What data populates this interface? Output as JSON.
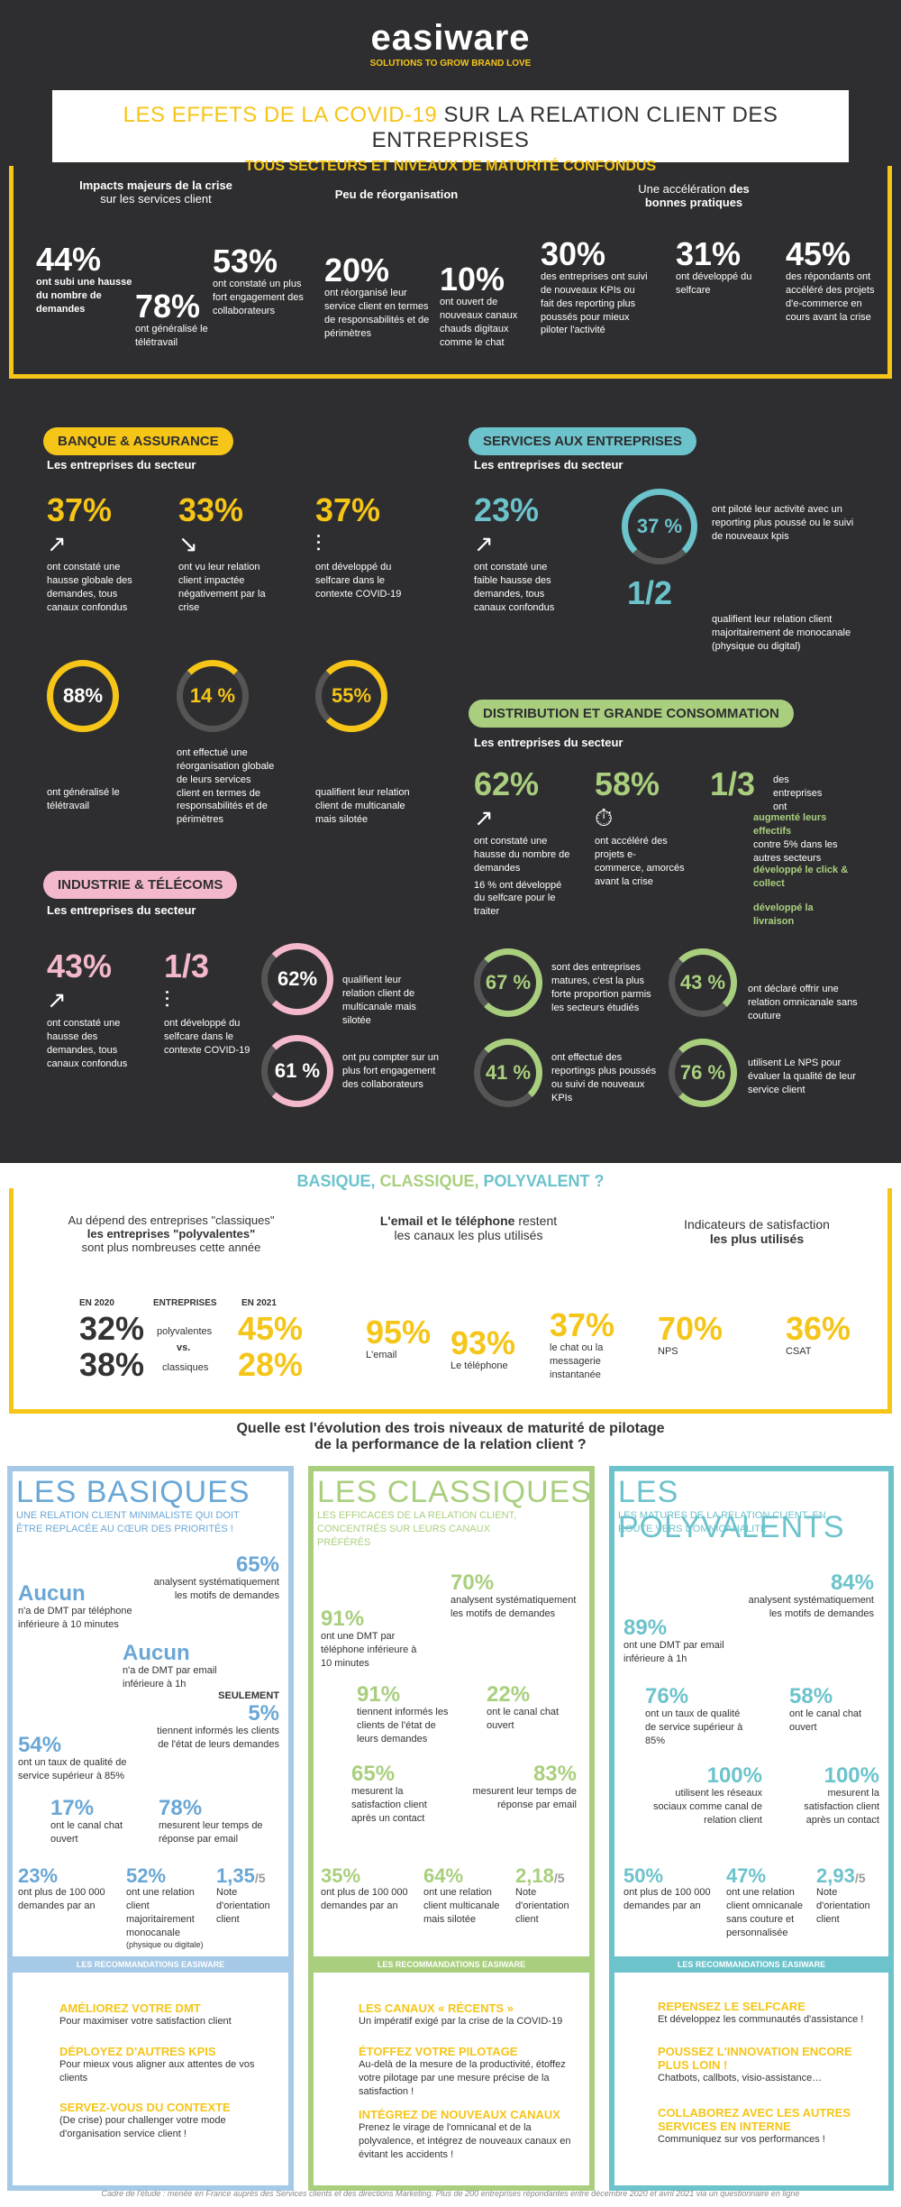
{
  "header": {
    "brand": "easiware",
    "tagline": "SOLUTIONS TO GROW BRAND LOVE",
    "title_a": "LES EFFETS DE LA COVID-19",
    "title_b": " SUR LA RELATION CLIENT DES ENTREPRISES",
    "subtitle": "TOUS SECTEURS ET NIVEAUX DE MATURITÉ CONFONDUS"
  },
  "overview": {
    "h1": "Impacts majeurs de la crise",
    "h1b": "sur les services client",
    "h2": "Peu de réorganisation",
    "h3a": "Une accélération ",
    "h3b": "des",
    "h3c": "bonnes pratiques",
    "s1": "44%",
    "s1t": "ont subi une hausse du nombre de demandes",
    "s2": "78%",
    "s2t": "ont généralisé le télétravail",
    "s3": "53%",
    "s3t": "ont constaté un plus fort engagement des collaborateurs",
    "s4": "20%",
    "s4t": "ont réorganisé leur service client en termes de responsabilités et de périmètres",
    "s5": "10%",
    "s5t": "ont ouvert de nouveaux canaux chauds digitaux comme le chat",
    "s6": "30%",
    "s6t": "des entreprises ont suivi de nouveaux KPIs ou fait des reporting plus poussés pour mieux piloter l'activité",
    "s7": "31%",
    "s7t": "ont développé du selfcare",
    "s8": "45%",
    "s8t": "des répondants ont accéléré des projets d'e-commerce en cours avant la crise"
  },
  "banque": {
    "pill": "BANQUE & ASSURANCE",
    "sub": "Les entreprises du secteur",
    "a": "37%",
    "at": "ont constaté une hausse globale des demandes, tous canaux confondus",
    "b": "33%",
    "bt": "ont vu leur relation client impactée négativement par la crise",
    "c": "37%",
    "ct": "ont développé du selfcare dans le contexte COVID-19",
    "d": "88%",
    "dt": "ont généralisé le télétravail",
    "e": "14 %",
    "et": "ont effectué une réorganisation globale de leurs services client en termes de responsabilités et de périmètres",
    "f": "55%",
    "ft": "qualifient leur relation client de multicanale mais silotée"
  },
  "services": {
    "pill": "SERVICES AUX ENTREPRISES",
    "sub": "Les entreprises du secteur",
    "a": "23%",
    "at": "ont constaté une faible hausse des demandes, tous canaux confondus",
    "b": "37 %",
    "bt": "ont piloté leur activité avec un reporting plus poussé ou le suivi de nouveaux kpis",
    "c": "1/2",
    "ct": "qualifient leur relation client majoritairement de monocanale (physique ou digital)"
  },
  "industrie": {
    "pill": "INDUSTRIE & TÉLÉCOMS",
    "sub": "Les entreprises du secteur",
    "a": "43%",
    "at": "ont constaté une hausse des demandes, tous canaux confondus",
    "b": "1/3",
    "bt": "ont développé du selfcare dans le contexte COVID-19",
    "c": "62%",
    "ct": "qualifient leur relation client de multicanale mais silotée",
    "d": "61 %",
    "dt": "ont pu compter sur un plus fort engagement des collaborateurs"
  },
  "distribution": {
    "pill": "DISTRIBUTION ET GRANDE CONSOMMATION",
    "sub": "Les entreprises du secteur",
    "a": "62%",
    "at": "ont constaté une hausse du nombre de demandes",
    "at2": "16 % ont développé du selfcare pour le traiter",
    "b": "58%",
    "bt": "ont accéléré des projets e-commerce, amorcés avant la crise",
    "c": "1/3",
    "ct": "des entreprises ont",
    "c1": "augmenté leurs effectifs",
    "c1t": "contre 5% dans les autres secteurs",
    "c2": "développé le click & collect",
    "c3": "développé la livraison",
    "d": "67 %",
    "dt": "sont des entreprises matures, c'est la plus forte proportion parmis les secteurs étudiés",
    "e": "43 %",
    "et": "ont déclaré offrir une relation omnicanale sans couture",
    "f": "41 %",
    "ft": "ont effectué des reportings plus poussés ou suivi de nouveaux KPIs",
    "g": "76 %",
    "gt": "utilisent Le NPS pour évaluer la qualité de leur service client"
  },
  "basique": {
    "t1": "BASIQUE, ",
    "t2": "CLASSIQUE, ",
    "t3": "POLYVALENT ?",
    "c1a": "Au dépend des entreprises \"classiques\"",
    "c1b": "les entreprises \"polyvalentes\"",
    "c1c": "sont plus nombreuses cette année",
    "en2020": "EN 2020",
    "entreprises": "ENTREPRISES",
    "en2021": "EN 2021",
    "v1": "32%",
    "l1": "polyvalentes",
    "v2": "45%",
    "vs": "vs.",
    "v3": "38%",
    "l2": "classiques",
    "v4": "28%",
    "c2a": "L'email et le téléphone",
    "c2b": " restent",
    "c2c": "les canaux les plus utilisés",
    "e1": "95%",
    "e1t": "L'email",
    "e2": "93%",
    "e2t": "Le téléphone",
    "e3": "37%",
    "e3t": "le chat ou la messagerie instantanée",
    "c3a": "Indicateurs de satisfaction",
    "c3b": "les plus utilisés",
    "n1": "70%",
    "n1t": "NPS",
    "n2": "36%",
    "n2t": "CSAT",
    "q1": "Quelle est l'évolution des trois niveaux de maturité de pilotage",
    "q2": "de la performance de la relation client ?"
  },
  "col_basiques": {
    "title": "LES BASIQUES",
    "sub": "UNE RELATION CLIENT MINIMALISTE QUI DOIT ÊTRE REPLACÉE AU CŒUR DES PRIORITÉS !",
    "a": "65%",
    "at": "analysent systématiquement les motifs de demandes",
    "b": "Aucun",
    "bt": "n'a de DMT par téléphone inférieure à 10 minutes",
    "c": "Aucun",
    "ct": "n'a de DMT par email inférieure à 1h",
    "d0": "SEULEMENT",
    "d": "5%",
    "dt": "tiennent informés les clients de l'état de leurs demandes",
    "e": "54%",
    "et": "ont un taux de qualité de service supérieur à 85%",
    "f": "17%",
    "ft": "ont le canal chat ouvert",
    "g": "78%",
    "gt": "mesurent leur temps de réponse par email",
    "h": "23%",
    "ht": "ont plus de 100 000 demandes par an",
    "i": "52%",
    "it": "ont une relation client majoritairement monocanale",
    "it2": "(physique ou digitale)",
    "j": "1,35",
    "jd": "/5",
    "jt": "Note d'orientation client"
  },
  "col_classiques": {
    "title": "LES CLASSIQUES",
    "sub": "LES EFFICACES DE LA RELATION CLIENT, CONCENTRÉS SUR LEURS CANAUX PRÉFÉRÉS",
    "a": "70%",
    "at": "analysent systématiquement les motifs de demandes",
    "b": "91%",
    "bt": "ont une DMT par téléphone inférieure à 10 minutes",
    "c": "91%",
    "ct": "tiennent informés les clients de l'état de leurs demandes",
    "d": "22%",
    "dt": "ont le canal chat ouvert",
    "e": "65%",
    "et": "mesurent la satisfaction client après un contact",
    "f": "83%",
    "ft": "mesurent leur temps de réponse par email",
    "h": "35%",
    "ht": "ont plus de 100 000 demandes par an",
    "i": "64%",
    "it": "ont une relation client multicanale mais silotée",
    "j": "2,18",
    "jd": "/5",
    "jt": "Note d'orientation client"
  },
  "col_polyvalents": {
    "title": "LES POLYVALENTS",
    "sub": "LES MATURES DE LA RELATION CLIENT, EN ROUTE VERS L'OMNICANALITÉ",
    "a": "84%",
    "at": "analysent systématiquement les motifs de demandes",
    "b": "89%",
    "bt": "ont une DMT par email inférieure à 1h",
    "c": "76%",
    "ct": "ont un taux de qualité de service supérieur à 85%",
    "d": "58%",
    "dt": "ont le canal chat ouvert",
    "e": "100%",
    "et": "utilisent les réseaux sociaux comme canal de relation client",
    "f": "100%",
    "ft": "mesurent la satisfaction client après un contact",
    "h": "50%",
    "ht": "ont plus de 100 000 demandes par an",
    "i": "47%",
    "it": "ont une relation client omnicanale sans couture et personnalisée",
    "j": "2,93",
    "jd": "/5",
    "jt": "Note d'orientation client"
  },
  "reco": {
    "label": "LES RECOMMANDATIONS EASIWARE",
    "b1": "AMÉLIOREZ VOTRE DMT",
    "b1t": "Pour maximiser votre satisfaction client",
    "b2": "DÉPLOYEZ D'AUTRES KPIS",
    "b2t": "Pour mieux vous aligner aux attentes de vos clients",
    "b3": "SERVEZ-VOUS DU CONTEXTE",
    "b3t": "(De crise) pour challenger votre mode d'organisation service client !",
    "c1": "LES CANAUX « RÉCENTS »",
    "c1t": "Un impératif exigé par la crise de la COVID-19",
    "c2": "ÉTOFFEZ VOTRE PILOTAGE",
    "c2t": "Au-delà de la mesure de la productivité, étoffez votre pilotage par une mesure précise de la satisfaction !",
    "c3": "INTÉGREZ DE NOUVEAUX CANAUX",
    "c3t": "Prenez le virage de l'omnicanal et de la polyvalence, et intégrez de nouveaux canaux en évitant les accidents !",
    "p1": "REPENSEZ LE SELFCARE",
    "p1t": "Et développez les communautés d'assistance !",
    "p2": "POUSSEZ L'INNOVATION ENCORE PLUS LOIN !",
    "p2t": "Chatbots, callbots, visio-assistance…",
    "p3": "COLLABOREZ AVEC LES AUTRES SERVICES EN INTERNE",
    "p3t": "Communiquez sur vos performances !"
  },
  "footer": "Cadre de l'étude : menée en France auprès des Services clients et des directions Marketing. Plus de 200 entreprises répondantes entre décembre 2020 et avril 2021 via un questionnaire en ligne"
}
